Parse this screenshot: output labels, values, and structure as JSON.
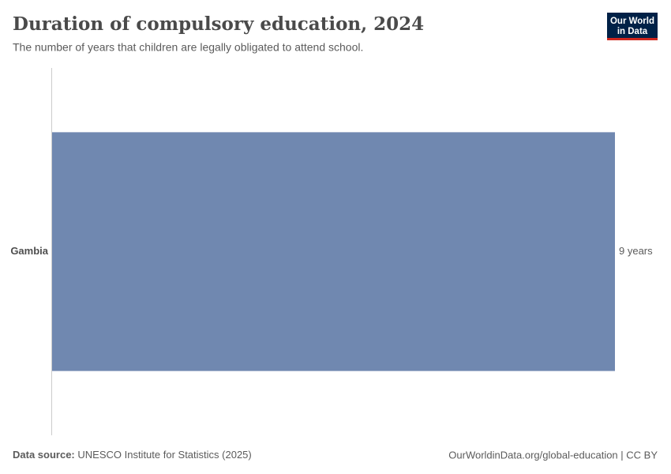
{
  "chart_data": {
    "type": "bar",
    "orientation": "horizontal",
    "title": "Duration of compulsory education, 2024",
    "subtitle": "The number of years that children are legally obligated to attend school.",
    "categories": [
      "Gambia"
    ],
    "values": [
      9
    ],
    "value_labels": [
      "9 years"
    ],
    "color": "#7088b0",
    "source_label": "Data source:",
    "source": "UNESCO Institute for Statistics (2025)",
    "footer_right": "OurWorldinData.org/global-education | CC BY",
    "logo": [
      "Our World",
      "in Data"
    ]
  }
}
